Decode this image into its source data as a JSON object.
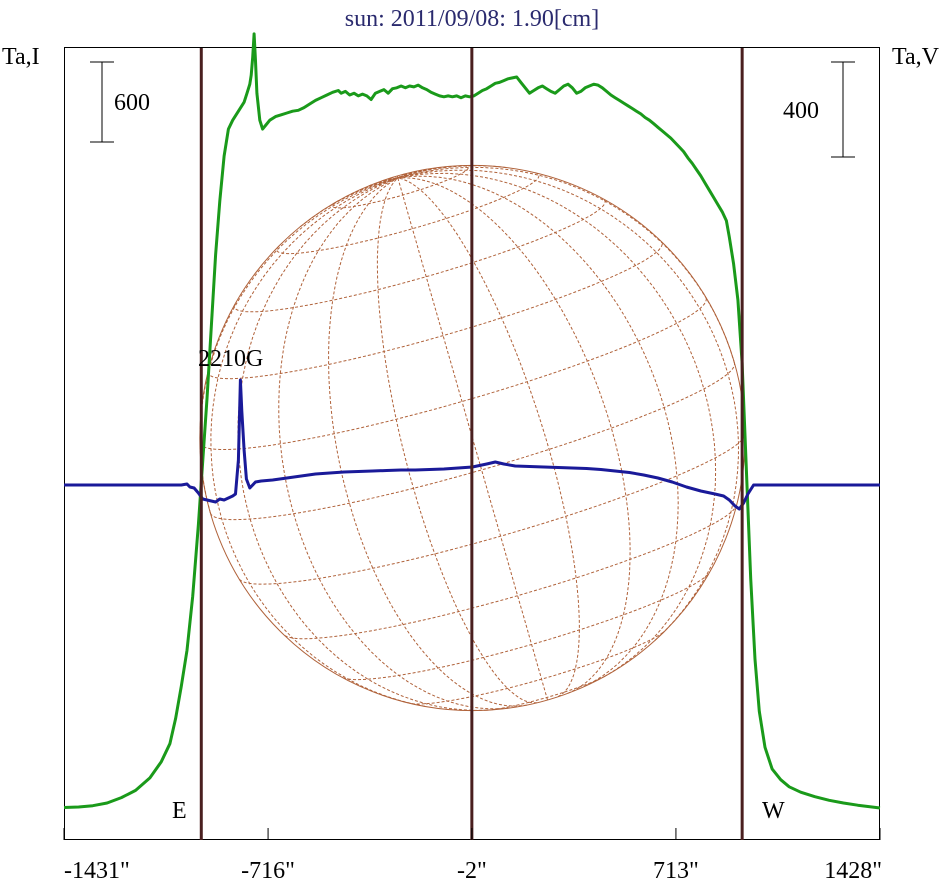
{
  "chart_data": {
    "type": "line",
    "title": "sun: 2011/09/08: 1.90[cm]",
    "left_axis_label": "Ta,I",
    "right_axis_label": "Ta,V",
    "x_ticks": [
      "-1431\"",
      "-716\"",
      "-2\"",
      "713\"",
      "1428\""
    ],
    "x_tick_values": [
      -1431,
      -716,
      -2,
      713,
      1428
    ],
    "xlim": [
      -1431,
      1428
    ],
    "scale_bar_I": "600",
    "scale_bar_V": "400",
    "limb_labels": {
      "east": "E",
      "west": "W"
    },
    "annotation": "2210G",
    "vertical_markers_arcsec": [
      -950,
      -2,
      945
    ],
    "solar_disk_radius_arcsec": 955,
    "series": [
      {
        "key": "I",
        "color": "#1a9a1a",
        "points": [
          [
            -1431,
            25
          ],
          [
            -1380,
            28
          ],
          [
            -1330,
            35
          ],
          [
            -1280,
            50
          ],
          [
            -1230,
            80
          ],
          [
            -1180,
            120
          ],
          [
            -1130,
            190
          ],
          [
            -1090,
            280
          ],
          [
            -1060,
            380
          ],
          [
            -1040,
            520
          ],
          [
            -1020,
            700
          ],
          [
            -1000,
            900
          ],
          [
            -980,
            1200
          ],
          [
            -960,
            1600
          ],
          [
            -945,
            1950
          ],
          [
            -930,
            2300
          ],
          [
            -915,
            2700
          ],
          [
            -900,
            3100
          ],
          [
            -885,
            3400
          ],
          [
            -870,
            3650
          ],
          [
            -855,
            3800
          ],
          [
            -840,
            3850
          ],
          [
            -820,
            3900
          ],
          [
            -800,
            3950
          ],
          [
            -790,
            4000
          ],
          [
            -780,
            4050
          ],
          [
            -775,
            4100
          ],
          [
            -770,
            4200
          ],
          [
            -765,
            4330
          ],
          [
            -760,
            4180
          ],
          [
            -755,
            4000
          ],
          [
            -745,
            3850
          ],
          [
            -735,
            3800
          ],
          [
            -725,
            3820
          ],
          [
            -710,
            3850
          ],
          [
            -690,
            3870
          ],
          [
            -670,
            3880
          ],
          [
            -650,
            3890
          ],
          [
            -630,
            3900
          ],
          [
            -610,
            3905
          ],
          [
            -590,
            3920
          ],
          [
            -570,
            3940
          ],
          [
            -550,
            3960
          ],
          [
            -530,
            3975
          ],
          [
            -510,
            3990
          ],
          [
            -490,
            4005
          ],
          [
            -470,
            4015
          ],
          [
            -460,
            4000
          ],
          [
            -445,
            4010
          ],
          [
            -430,
            3990
          ],
          [
            -415,
            4000
          ],
          [
            -400,
            3985
          ],
          [
            -385,
            3995
          ],
          [
            -370,
            3985
          ],
          [
            -355,
            3965
          ],
          [
            -340,
            4000
          ],
          [
            -325,
            4010
          ],
          [
            -310,
            4020
          ],
          [
            -295,
            4000
          ],
          [
            -280,
            4025
          ],
          [
            -265,
            4030
          ],
          [
            -250,
            4040
          ],
          [
            -235,
            4030
          ],
          [
            -220,
            4040
          ],
          [
            -205,
            4035
          ],
          [
            -190,
            4045
          ],
          [
            -175,
            4030
          ],
          [
            -160,
            4020
          ],
          [
            -145,
            4005
          ],
          [
            -130,
            3995
          ],
          [
            -115,
            3985
          ],
          [
            -100,
            3980
          ],
          [
            -85,
            3985
          ],
          [
            -70,
            3980
          ],
          [
            -55,
            3985
          ],
          [
            -40,
            3975
          ],
          [
            -25,
            3985
          ],
          [
            -10,
            3980
          ],
          [
            5,
            3985
          ],
          [
            20,
            4000
          ],
          [
            35,
            4015
          ],
          [
            50,
            4025
          ],
          [
            65,
            4040
          ],
          [
            80,
            4055
          ],
          [
            95,
            4060
          ],
          [
            110,
            4070
          ],
          [
            125,
            4080
          ],
          [
            140,
            4085
          ],
          [
            155,
            4090
          ],
          [
            170,
            4060
          ],
          [
            185,
            4030
          ],
          [
            200,
            4000
          ],
          [
            215,
            4015
          ],
          [
            230,
            4030
          ],
          [
            245,
            4040
          ],
          [
            260,
            4025
          ],
          [
            275,
            4010
          ],
          [
            290,
            4000
          ],
          [
            305,
            4020
          ],
          [
            320,
            4040
          ],
          [
            335,
            4050
          ],
          [
            350,
            4030
          ],
          [
            365,
            4000
          ],
          [
            380,
            4010
          ],
          [
            395,
            4030
          ],
          [
            410,
            4040
          ],
          [
            425,
            4050
          ],
          [
            440,
            4045
          ],
          [
            455,
            4030
          ],
          [
            470,
            4010
          ],
          [
            485,
            3990
          ],
          [
            500,
            3975
          ],
          [
            515,
            3960
          ],
          [
            530,
            3945
          ],
          [
            545,
            3930
          ],
          [
            560,
            3915
          ],
          [
            575,
            3900
          ],
          [
            590,
            3885
          ],
          [
            605,
            3865
          ],
          [
            620,
            3850
          ],
          [
            635,
            3830
          ],
          [
            650,
            3810
          ],
          [
            665,
            3790
          ],
          [
            680,
            3770
          ],
          [
            695,
            3750
          ],
          [
            710,
            3725
          ],
          [
            725,
            3700
          ],
          [
            740,
            3675
          ],
          [
            755,
            3640
          ],
          [
            770,
            3610
          ],
          [
            785,
            3575
          ],
          [
            800,
            3540
          ],
          [
            815,
            3500
          ],
          [
            830,
            3460
          ],
          [
            845,
            3420
          ],
          [
            860,
            3380
          ],
          [
            875,
            3340
          ],
          [
            890,
            3290
          ],
          [
            900,
            3200
          ],
          [
            915,
            3050
          ],
          [
            930,
            2850
          ],
          [
            945,
            2500
          ],
          [
            960,
            1900
          ],
          [
            975,
            1300
          ],
          [
            990,
            850
          ],
          [
            1005,
            560
          ],
          [
            1025,
            360
          ],
          [
            1050,
            240
          ],
          [
            1080,
            180
          ],
          [
            1110,
            140
          ],
          [
            1150,
            110
          ],
          [
            1200,
            85
          ],
          [
            1250,
            65
          ],
          [
            1300,
            50
          ],
          [
            1350,
            38
          ],
          [
            1400,
            28
          ],
          [
            1428,
            22
          ]
        ]
      },
      {
        "key": "V",
        "color": "#1a1a99",
        "points": [
          [
            -1431,
            0
          ],
          [
            -1100,
            0
          ],
          [
            -1020,
            0
          ],
          [
            -1000,
            2
          ],
          [
            -990,
            -4
          ],
          [
            -975,
            -6
          ],
          [
            -960,
            -16
          ],
          [
            -945,
            -28
          ],
          [
            -930,
            -30
          ],
          [
            -915,
            -32
          ],
          [
            -900,
            -34
          ],
          [
            -885,
            -28
          ],
          [
            -870,
            -30
          ],
          [
            -855,
            -26
          ],
          [
            -840,
            -22
          ],
          [
            -830,
            -18
          ],
          [
            -820,
            50
          ],
          [
            -813,
            210
          ],
          [
            -808,
            148
          ],
          [
            -800,
            70
          ],
          [
            -792,
            12
          ],
          [
            -780,
            -6
          ],
          [
            -760,
            6
          ],
          [
            -740,
            8
          ],
          [
            -700,
            10
          ],
          [
            -650,
            14
          ],
          [
            -600,
            18
          ],
          [
            -550,
            22
          ],
          [
            -500,
            24
          ],
          [
            -450,
            26
          ],
          [
            -400,
            27
          ],
          [
            -350,
            28
          ],
          [
            -300,
            29
          ],
          [
            -250,
            30
          ],
          [
            -200,
            30
          ],
          [
            -150,
            31
          ],
          [
            -100,
            32
          ],
          [
            -50,
            34
          ],
          [
            0,
            36
          ],
          [
            50,
            42
          ],
          [
            80,
            46
          ],
          [
            110,
            42
          ],
          [
            150,
            38
          ],
          [
            200,
            37
          ],
          [
            250,
            36
          ],
          [
            300,
            35
          ],
          [
            350,
            34
          ],
          [
            400,
            33
          ],
          [
            450,
            31
          ],
          [
            500,
            28
          ],
          [
            550,
            25
          ],
          [
            600,
            20
          ],
          [
            650,
            14
          ],
          [
            700,
            6
          ],
          [
            750,
            -4
          ],
          [
            800,
            -12
          ],
          [
            850,
            -18
          ],
          [
            880,
            -22
          ],
          [
            900,
            -30
          ],
          [
            920,
            -42
          ],
          [
            935,
            -48
          ],
          [
            950,
            -36
          ],
          [
            965,
            -18
          ],
          [
            985,
            0
          ],
          [
            1000,
            0
          ],
          [
            1428,
            0
          ]
        ]
      }
    ]
  }
}
